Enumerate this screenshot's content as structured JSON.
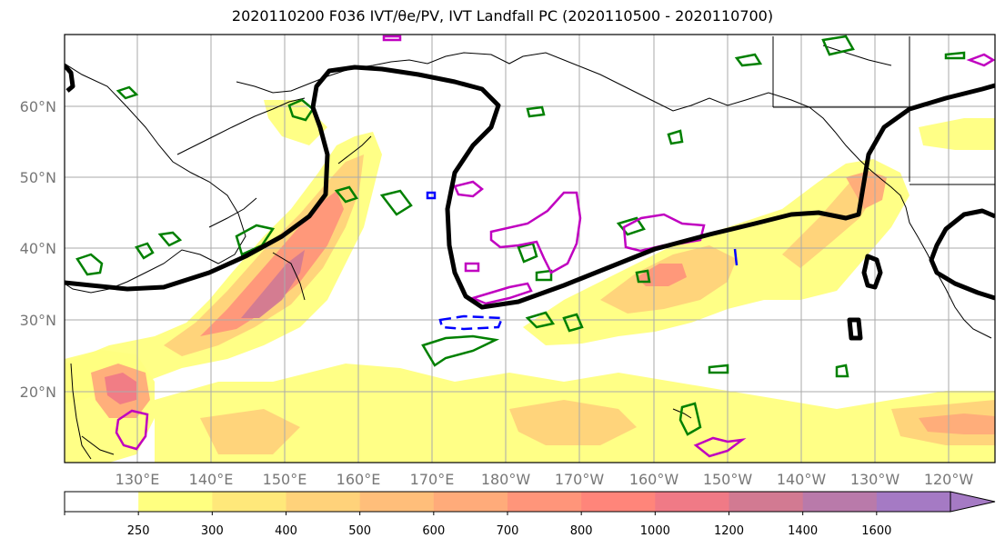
{
  "title": "2020110200 F036 IVT/θe/PV, IVT Landfall PC (2020110500 - 2020110700)",
  "latitude_labels": [
    "60°N",
    "50°N",
    "40°N",
    "30°N",
    "20°N"
  ],
  "longitude_labels": [
    "130°E",
    "140°E",
    "150°E",
    "160°E",
    "170°E",
    "180°W",
    "170°W",
    "160°W",
    "150°W",
    "140°W",
    "130°W",
    "120°W"
  ],
  "colorbar": {
    "ticks": [
      "250",
      "300",
      "400",
      "500",
      "600",
      "700",
      "800",
      "1000",
      "1200",
      "1400",
      "1600"
    ],
    "colors": [
      "#ffffff",
      "#ffff80",
      "#ffe87a",
      "#ffd27a",
      "#ffbe7a",
      "#ffab7a",
      "#ff957a",
      "#ff857a",
      "#f07a86",
      "#d27a92",
      "#b97aaa",
      "#a57ac4"
    ]
  },
  "contour_colors": {
    "ivt_landfall": "#000000",
    "theta_e": "#008000",
    "pv_positive": "#c000c0",
    "pv_negative": "#0000ff"
  }
}
